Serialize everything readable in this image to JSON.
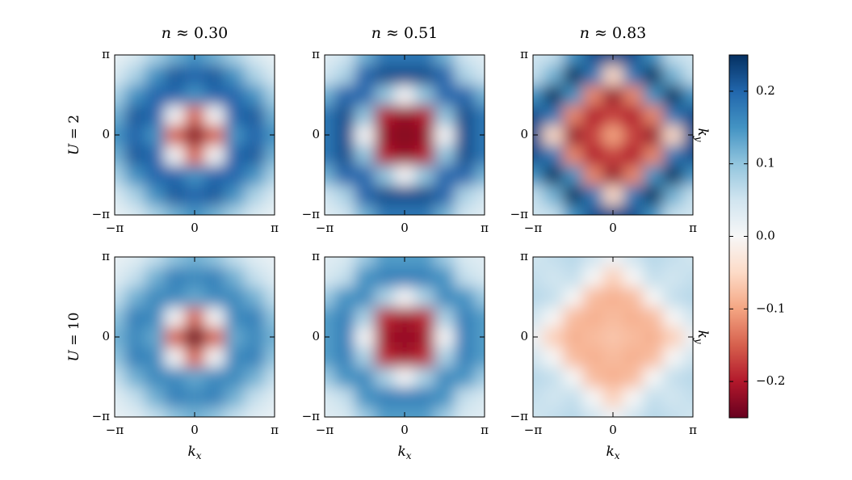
{
  "chart_data": [
    {
      "type": "heatmap",
      "title": "n ≈ 0.30",
      "row_label": "U = 2",
      "x": [
        -3.14159,
        -2.35619,
        -1.5708,
        -0.7854,
        0,
        0.7854,
        1.5708,
        2.35619,
        3.14159
      ],
      "y": [
        -3.14159,
        -2.35619,
        -1.5708,
        -0.7854,
        0,
        0.7854,
        1.5708,
        2.35619,
        3.14159
      ],
      "xlim": [
        -3.14159,
        3.14159
      ],
      "ylim": [
        -3.14159,
        3.14159
      ],
      "xticks": [
        {
          "value": -3.14159,
          "label": "−π"
        },
        0,
        {
          "value": 3.14159,
          "label": "π"
        }
      ],
      "yticks": [
        {
          "value": -3.14159,
          "label": "−π"
        },
        0,
        {
          "value": 3.14159,
          "label": "π"
        }
      ],
      "values": [
        [
          0.02,
          0.04,
          0.08,
          0.12,
          0.15,
          0.12,
          0.08,
          0.04,
          0.02
        ],
        [
          0.04,
          0.08,
          0.15,
          0.21,
          0.2,
          0.21,
          0.15,
          0.08,
          0.04
        ],
        [
          0.08,
          0.15,
          0.2,
          0.2,
          0.15,
          0.2,
          0.2,
          0.15,
          0.08
        ],
        [
          0.12,
          0.21,
          0.2,
          0,
          -0.15,
          0,
          0.2,
          0.21,
          0.12
        ],
        [
          0.15,
          0.2,
          0.15,
          -0.15,
          -0.23,
          -0.15,
          0.15,
          0.2,
          0.15
        ],
        [
          0.12,
          0.21,
          0.2,
          0,
          -0.15,
          0,
          0.2,
          0.21,
          0.12
        ],
        [
          0.08,
          0.15,
          0.2,
          0.2,
          0.15,
          0.2,
          0.2,
          0.15,
          0.08
        ],
        [
          0.04,
          0.08,
          0.15,
          0.21,
          0.2,
          0.21,
          0.15,
          0.08,
          0.04
        ],
        [
          0.02,
          0.04,
          0.08,
          0.12,
          0.15,
          0.12,
          0.08,
          0.04,
          0.02
        ]
      ]
    },
    {
      "type": "heatmap",
      "title": "n ≈ 0.51",
      "x": [
        -3.14159,
        -2.35619,
        -1.5708,
        -0.7854,
        0,
        0.7854,
        1.5708,
        2.35619,
        3.14159
      ],
      "y": [
        -3.14159,
        -2.35619,
        -1.5708,
        -0.7854,
        0,
        0.7854,
        1.5708,
        2.35619,
        3.14159
      ],
      "xlim": [
        -3.14159,
        3.14159
      ],
      "ylim": [
        -3.14159,
        3.14159
      ],
      "xticks": [
        {
          "value": -3.14159,
          "label": "−π"
        },
        0,
        {
          "value": 3.14159,
          "label": "π"
        }
      ],
      "yticks": [
        {
          "value": -3.14159,
          "label": "−π"
        },
        0,
        {
          "value": 3.14159,
          "label": "π"
        }
      ],
      "values": [
        [
          0.03,
          0.05,
          0.12,
          0.18,
          0.18,
          0.18,
          0.12,
          0.05,
          0.03
        ],
        [
          0.05,
          0.08,
          0.2,
          0.22,
          0.22,
          0.22,
          0.2,
          0.08,
          0.05
        ],
        [
          0.12,
          0.2,
          0.2,
          0.1,
          0,
          0.1,
          0.2,
          0.2,
          0.12
        ],
        [
          0.18,
          0.22,
          0.1,
          -0.2,
          -0.22,
          -0.2,
          0.1,
          0.22,
          0.18
        ],
        [
          0.18,
          0.22,
          0,
          -0.22,
          -0.23,
          -0.22,
          0,
          0.22,
          0.18
        ],
        [
          0.18,
          0.22,
          0.1,
          -0.2,
          -0.22,
          -0.2,
          0.1,
          0.22,
          0.18
        ],
        [
          0.12,
          0.2,
          0.2,
          0.1,
          0,
          0.1,
          0.2,
          0.2,
          0.12
        ],
        [
          0.05,
          0.08,
          0.2,
          0.22,
          0.22,
          0.22,
          0.2,
          0.08,
          0.05
        ],
        [
          0.03,
          0.05,
          0.12,
          0.18,
          0.18,
          0.18,
          0.12,
          0.05,
          0.03
        ]
      ]
    },
    {
      "type": "heatmap",
      "title": "n ≈ 0.83",
      "ylabel": "ky",
      "x": [
        -3.14159,
        -2.35619,
        -1.5708,
        -0.7854,
        0,
        0.7854,
        1.5708,
        2.35619,
        3.14159
      ],
      "y": [
        -3.14159,
        -2.35619,
        -1.5708,
        -0.7854,
        0,
        0.7854,
        1.5708,
        2.35619,
        3.14159
      ],
      "xlim": [
        -3.14159,
        3.14159
      ],
      "ylim": [
        -3.14159,
        3.14159
      ],
      "xticks": [
        {
          "value": -3.14159,
          "label": "−π"
        },
        0,
        {
          "value": 3.14159,
          "label": "π"
        }
      ],
      "yticks": [
        {
          "value": -3.14159,
          "label": "−π"
        },
        0,
        {
          "value": 3.14159,
          "label": "π"
        }
      ],
      "values": [
        [
          0.05,
          0.06,
          0.15,
          0.22,
          0.22,
          0.22,
          0.15,
          0.06,
          0.05
        ],
        [
          0.06,
          0.12,
          0.25,
          0.18,
          -0.05,
          0.18,
          0.25,
          0.12,
          0.06
        ],
        [
          0.15,
          0.25,
          0.15,
          -0.12,
          -0.22,
          -0.12,
          0.15,
          0.25,
          0.15
        ],
        [
          0.22,
          0.18,
          -0.12,
          -0.2,
          -0.17,
          -0.2,
          -0.12,
          0.18,
          0.22
        ],
        [
          0.22,
          -0.05,
          -0.22,
          -0.17,
          -0.1,
          -0.17,
          -0.22,
          -0.05,
          0.22
        ],
        [
          0.22,
          0.18,
          -0.12,
          -0.2,
          -0.17,
          -0.2,
          -0.12,
          0.18,
          0.22
        ],
        [
          0.15,
          0.25,
          0.15,
          -0.12,
          -0.22,
          -0.12,
          0.15,
          0.25,
          0.15
        ],
        [
          0.06,
          0.12,
          0.25,
          0.18,
          -0.05,
          0.18,
          0.25,
          0.12,
          0.06
        ],
        [
          0.05,
          0.06,
          0.15,
          0.22,
          0.22,
          0.22,
          0.15,
          0.06,
          0.05
        ]
      ]
    },
    {
      "type": "heatmap",
      "row_label": "U = 10",
      "xlabel": "kx",
      "x": [
        -3.14159,
        -2.35619,
        -1.5708,
        -0.7854,
        0,
        0.7854,
        1.5708,
        2.35619,
        3.14159
      ],
      "y": [
        -3.14159,
        -2.35619,
        -1.5708,
        -0.7854,
        0,
        0.7854,
        1.5708,
        2.35619,
        3.14159
      ],
      "xlim": [
        -3.14159,
        3.14159
      ],
      "ylim": [
        -3.14159,
        3.14159
      ],
      "xticks": [
        {
          "value": -3.14159,
          "label": "−π"
        },
        0,
        {
          "value": 3.14159,
          "label": "π"
        }
      ],
      "yticks": [
        {
          "value": -3.14159,
          "label": "−π"
        },
        0,
        {
          "value": 3.14159,
          "label": "π"
        }
      ],
      "values": [
        [
          0.02,
          0.03,
          0.06,
          0.1,
          0.12,
          0.1,
          0.06,
          0.03,
          0.02
        ],
        [
          0.03,
          0.06,
          0.12,
          0.17,
          0.16,
          0.17,
          0.12,
          0.06,
          0.03
        ],
        [
          0.06,
          0.12,
          0.16,
          0.16,
          0.13,
          0.16,
          0.16,
          0.12,
          0.06
        ],
        [
          0.1,
          0.17,
          0.16,
          0,
          -0.15,
          0,
          0.16,
          0.17,
          0.1
        ],
        [
          0.12,
          0.16,
          0.13,
          -0.15,
          -0.25,
          -0.15,
          0.13,
          0.16,
          0.12
        ],
        [
          0.1,
          0.17,
          0.16,
          0,
          -0.15,
          0,
          0.16,
          0.17,
          0.1
        ],
        [
          0.06,
          0.12,
          0.16,
          0.16,
          0.13,
          0.16,
          0.16,
          0.12,
          0.06
        ],
        [
          0.03,
          0.06,
          0.12,
          0.17,
          0.16,
          0.17,
          0.12,
          0.06,
          0.03
        ],
        [
          0.02,
          0.03,
          0.06,
          0.1,
          0.12,
          0.1,
          0.06,
          0.03,
          0.02
        ]
      ]
    },
    {
      "type": "heatmap",
      "xlabel": "kx",
      "x": [
        -3.14159,
        -2.35619,
        -1.5708,
        -0.7854,
        0,
        0.7854,
        1.5708,
        2.35619,
        3.14159
      ],
      "y": [
        -3.14159,
        -2.35619,
        -1.5708,
        -0.7854,
        0,
        0.7854,
        1.5708,
        2.35619,
        3.14159
      ],
      "xlim": [
        -3.14159,
        3.14159
      ],
      "ylim": [
        -3.14159,
        3.14159
      ],
      "xticks": [
        {
          "value": -3.14159,
          "label": "−π"
        },
        0,
        {
          "value": 3.14159,
          "label": "π"
        }
      ],
      "yticks": [
        {
          "value": -3.14159,
          "label": "−π"
        },
        0,
        {
          "value": 3.14159,
          "label": "π"
        }
      ],
      "values": [
        [
          0.03,
          0.04,
          0.09,
          0.14,
          0.14,
          0.14,
          0.09,
          0.04,
          0.03
        ],
        [
          0.04,
          0.06,
          0.15,
          0.17,
          0.17,
          0.17,
          0.15,
          0.06,
          0.04
        ],
        [
          0.09,
          0.15,
          0.16,
          0.08,
          0,
          0.08,
          0.16,
          0.15,
          0.09
        ],
        [
          0.14,
          0.17,
          0.08,
          -0.19,
          -0.21,
          -0.19,
          0.08,
          0.17,
          0.14
        ],
        [
          0.14,
          0.17,
          0,
          -0.21,
          -0.22,
          -0.21,
          0,
          0.17,
          0.14
        ],
        [
          0.14,
          0.17,
          0.08,
          -0.19,
          -0.21,
          -0.19,
          0.08,
          0.17,
          0.14
        ],
        [
          0.09,
          0.15,
          0.16,
          0.08,
          0,
          0.08,
          0.16,
          0.15,
          0.09
        ],
        [
          0.04,
          0.06,
          0.15,
          0.17,
          0.17,
          0.17,
          0.15,
          0.06,
          0.04
        ],
        [
          0.03,
          0.04,
          0.09,
          0.14,
          0.14,
          0.14,
          0.09,
          0.04,
          0.03
        ]
      ]
    },
    {
      "type": "heatmap",
      "xlabel": "kx",
      "ylabel": "ky",
      "x": [
        -3.14159,
        -2.35619,
        -1.5708,
        -0.7854,
        0,
        0.7854,
        1.5708,
        2.35619,
        3.14159
      ],
      "y": [
        -3.14159,
        -2.35619,
        -1.5708,
        -0.7854,
        0,
        0.7854,
        1.5708,
        2.35619,
        3.14159
      ],
      "xlim": [
        -3.14159,
        3.14159
      ],
      "ylim": [
        -3.14159,
        3.14159
      ],
      "xticks": [
        {
          "value": -3.14159,
          "label": "−π"
        },
        0,
        {
          "value": 3.14159,
          "label": "π"
        }
      ],
      "yticks": [
        {
          "value": -3.14159,
          "label": "−π"
        },
        0,
        {
          "value": 3.14159,
          "label": "π"
        }
      ],
      "values": [
        [
          0.05,
          0.06,
          0.07,
          0.05,
          0.01,
          0.05,
          0.07,
          0.06,
          0.05
        ],
        [
          0.06,
          0.05,
          0.06,
          0,
          -0.06,
          0,
          0.06,
          0.05,
          0.06
        ],
        [
          0.07,
          0.06,
          0,
          -0.08,
          -0.09,
          -0.08,
          0,
          0.06,
          0.07
        ],
        [
          0.05,
          0,
          -0.08,
          -0.09,
          -0.08,
          -0.09,
          -0.08,
          0,
          0.05
        ],
        [
          0.01,
          -0.06,
          -0.09,
          -0.08,
          -0.07,
          -0.08,
          -0.09,
          -0.06,
          0.01
        ],
        [
          0.05,
          0,
          -0.08,
          -0.09,
          -0.08,
          -0.09,
          -0.08,
          0,
          0.05
        ],
        [
          0.07,
          0.06,
          0,
          -0.08,
          -0.09,
          -0.08,
          0,
          0.06,
          0.07
        ],
        [
          0.06,
          0.05,
          0.06,
          0,
          -0.06,
          0,
          0.06,
          0.05,
          0.06
        ],
        [
          0.05,
          0.06,
          0.07,
          0.05,
          0.01,
          0.05,
          0.07,
          0.06,
          0.05
        ]
      ]
    },
    {
      "type": "colorbar",
      "zlim": [
        -0.25,
        0.25
      ],
      "zticks": [
        {
          "value": -0.2,
          "label": "−0.2"
        },
        {
          "value": -0.1,
          "label": "−0.1"
        },
        {
          "value": 0,
          "label": "0.0"
        },
        0.1,
        0.2
      ],
      "colors": [
        "#67001f",
        "#b2182b",
        "#d6604d",
        "#f4a582",
        "#fddbc7",
        "#f7f7f7",
        "#d1e5f0",
        "#92c5de",
        "#4393c3",
        "#2166ac",
        "#053061"
      ]
    }
  ]
}
